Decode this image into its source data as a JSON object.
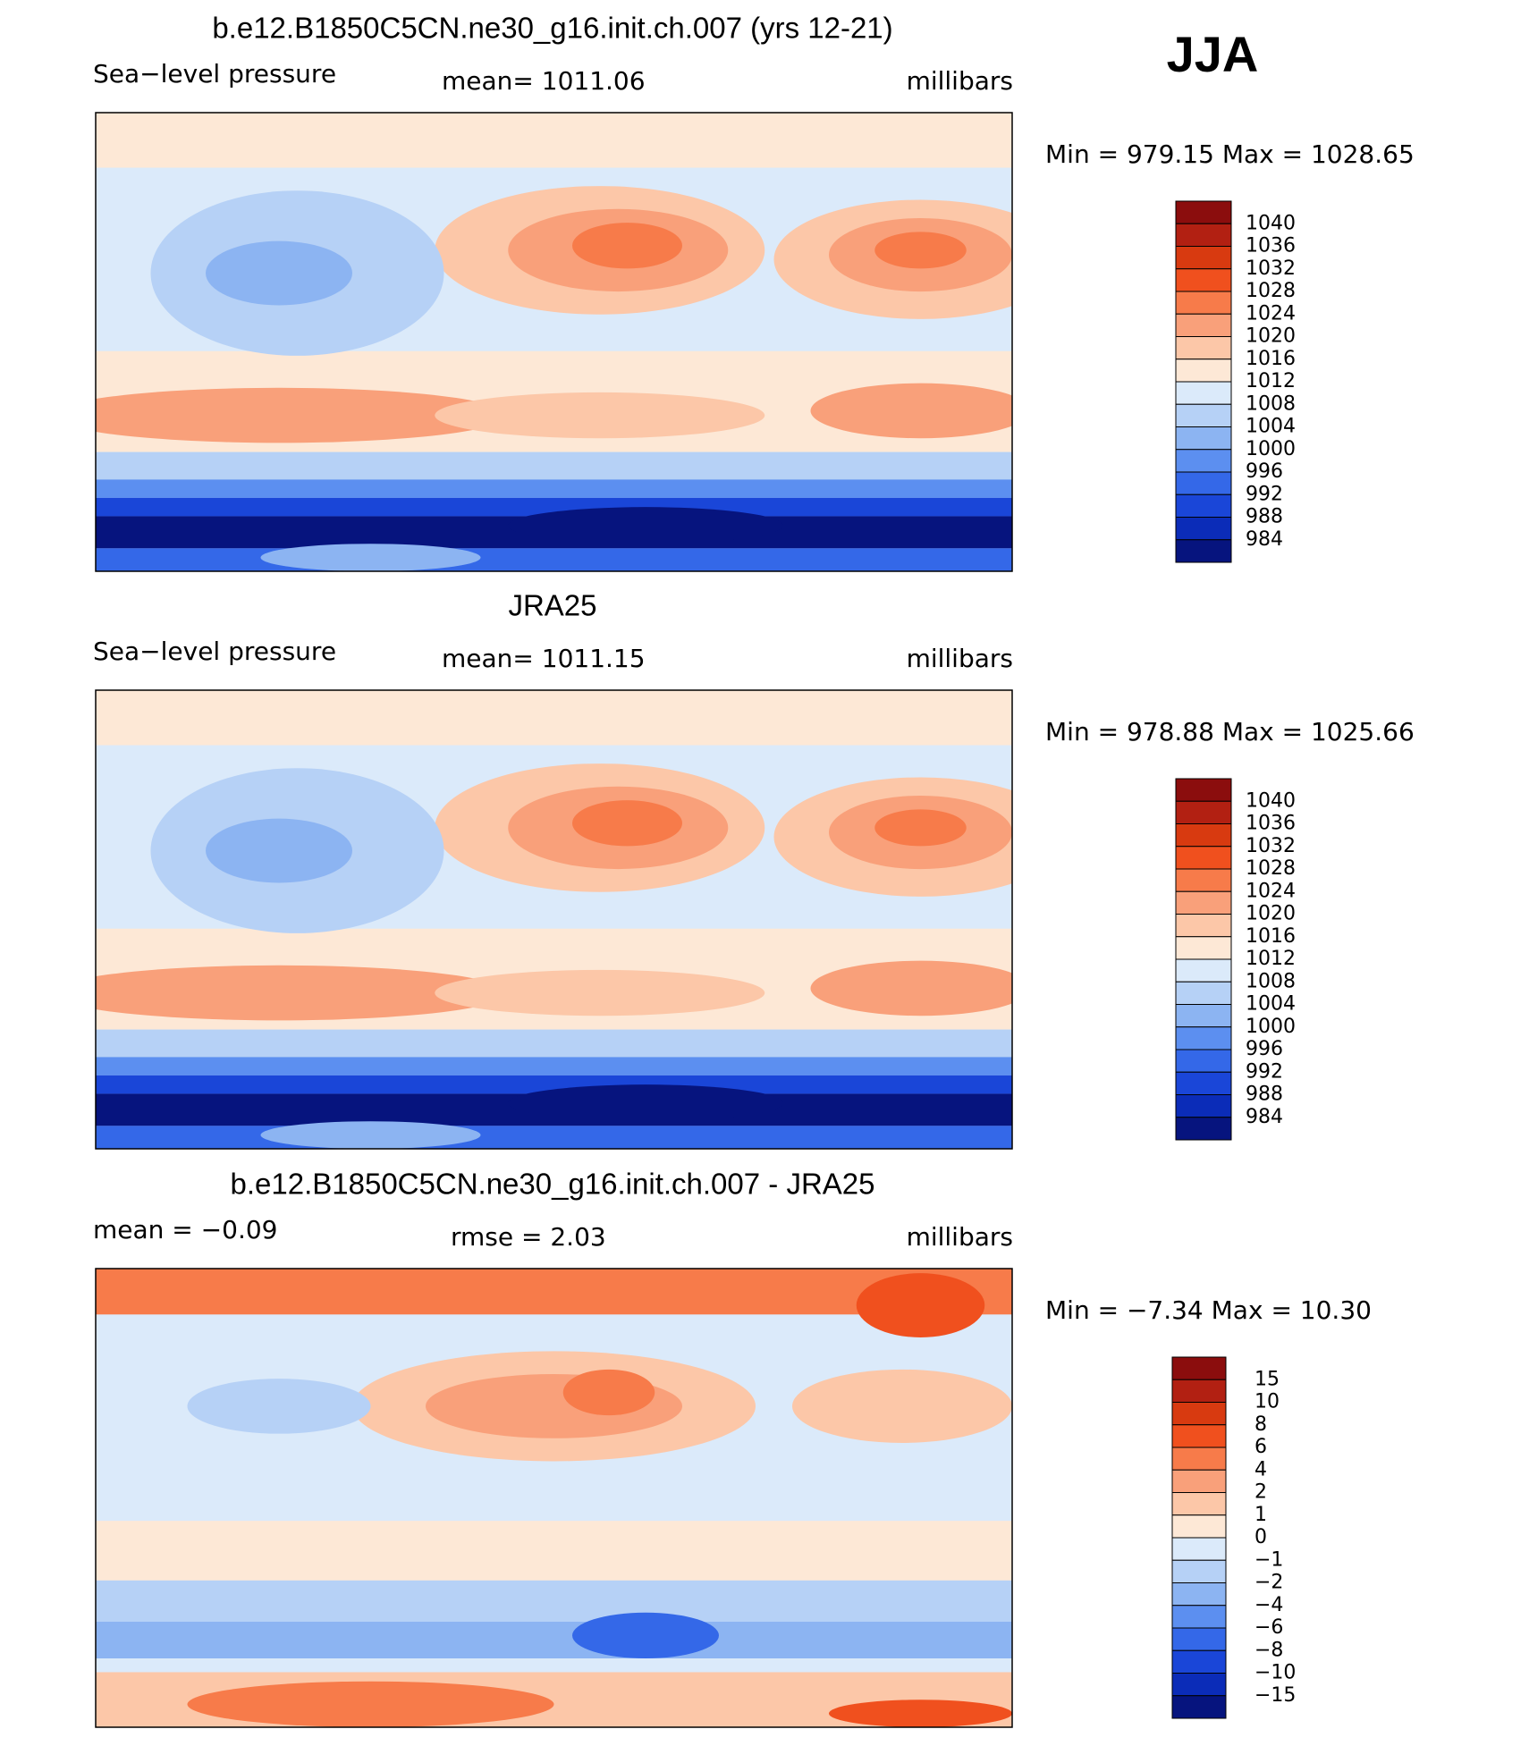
{
  "season": "JJA",
  "panels": [
    {
      "title": "b.e12.B1850C5CN.ne30_g16.init.ch.007 (yrs 12-21)",
      "left": "Sea−level pressure",
      "center": "mean=  1011.06",
      "right": "millibars",
      "minmax": "Min  =  979.15  Max  =  1028.65",
      "colorbar": {
        "levels": [
          1040,
          1036,
          1032,
          1028,
          1024,
          1020,
          1016,
          1012,
          1008,
          1004,
          1000,
          996,
          992,
          988,
          984
        ],
        "colors": [
          "#8b0d0d",
          "#b22012",
          "#d83a10",
          "#f0501e",
          "#f77b4a",
          "#f9a07a",
          "#fcc7a8",
          "#fde8d6",
          "#dbeafa",
          "#b6d1f6",
          "#8cb4f2",
          "#5c8ff0",
          "#3468e8",
          "#1a46d8",
          "#0b2cb8",
          "#06147e"
        ]
      }
    },
    {
      "title": "JRA25",
      "left": "Sea−level pressure",
      "center": "mean=  1011.15",
      "right": "millibars",
      "minmax": "Min  =  978.88  Max  =  1025.66",
      "colorbar": {
        "levels": [
          1040,
          1036,
          1032,
          1028,
          1024,
          1020,
          1016,
          1012,
          1008,
          1004,
          1000,
          996,
          992,
          988,
          984
        ],
        "colors": [
          "#8b0d0d",
          "#b22012",
          "#d83a10",
          "#f0501e",
          "#f77b4a",
          "#f9a07a",
          "#fcc7a8",
          "#fde8d6",
          "#dbeafa",
          "#b6d1f6",
          "#8cb4f2",
          "#5c8ff0",
          "#3468e8",
          "#1a46d8",
          "#0b2cb8",
          "#06147e"
        ]
      }
    },
    {
      "title": "b.e12.B1850C5CN.ne30_g16.init.ch.007 - JRA25",
      "left": "mean  =   −0.09",
      "center": "rmse  =     2.03",
      "right": "millibars",
      "minmax": "Min  =   −7.34  Max  =    10.30",
      "colorbar": {
        "levels": [
          15,
          10,
          8,
          6,
          4,
          2,
          1,
          0,
          {
            "value": -1,
            "label": "−1"
          },
          {
            "value": -2,
            "label": "−2"
          },
          {
            "value": -4,
            "label": "−4"
          },
          {
            "value": -6,
            "label": "−6"
          },
          {
            "value": -8,
            "label": "−8"
          },
          {
            "value": -10,
            "label": "−10"
          },
          {
            "value": -15,
            "label": "−15"
          }
        ],
        "colors": [
          "#8b0d0d",
          "#b22012",
          "#d83a10",
          "#f0501e",
          "#f77b4a",
          "#f9a07a",
          "#fcc7a8",
          "#fde8d6",
          "#dbeafa",
          "#b6d1f6",
          "#8cb4f2",
          "#5c8ff0",
          "#3468e8",
          "#1a46d8",
          "#0b2cb8",
          "#06147e"
        ]
      }
    }
  ]
}
